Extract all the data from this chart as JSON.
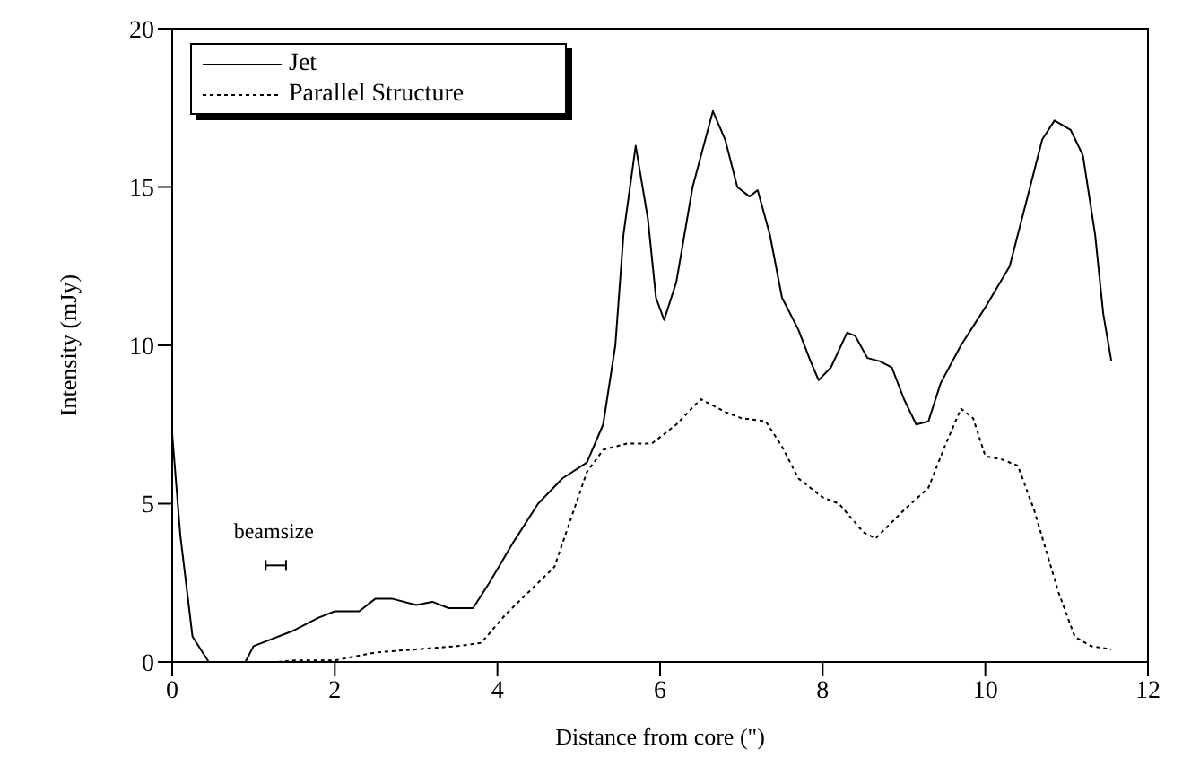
{
  "chart_data": {
    "type": "line",
    "xlabel": "Distance from core (\")",
    "ylabel": "Intensity (mJy)",
    "xlim": [
      0,
      12
    ],
    "xticks": [
      0,
      2,
      4,
      6,
      8,
      10,
      12
    ],
    "ylim": [
      0,
      20
    ],
    "yticks": [
      0,
      5,
      10,
      15,
      20
    ],
    "grid": false,
    "legend": "top left",
    "marker": "none",
    "annotations": [
      "beamsize"
    ],
    "series": [
      {
        "name": "Jet",
        "color": "#000000",
        "line_style": "solid",
        "x": [
          0,
          0.1,
          0.25,
          0.45,
          0.9,
          1.0,
          1.5,
          1.8,
          2.0,
          2.3,
          2.5,
          2.7,
          3.0,
          3.2,
          3.4,
          3.7,
          3.9,
          4.2,
          4.5,
          4.8,
          5.1,
          5.3,
          5.45,
          5.55,
          5.7,
          5.85,
          5.95,
          6.05,
          6.2,
          6.4,
          6.65,
          6.8,
          6.95,
          7.1,
          7.2,
          7.35,
          7.5,
          7.7,
          7.85,
          7.95,
          8.1,
          8.3,
          8.4,
          8.55,
          8.7,
          8.85,
          9.0,
          9.15,
          9.3,
          9.45,
          9.7,
          10.0,
          10.3,
          10.5,
          10.7,
          10.85,
          11.05,
          11.2,
          11.35,
          11.45,
          11.55
        ],
        "values": [
          7.2,
          4,
          0.8,
          0,
          0,
          0.5,
          1.0,
          1.4,
          1.6,
          1.6,
          2.0,
          2.0,
          1.8,
          1.9,
          1.7,
          1.7,
          2.5,
          3.8,
          5.0,
          5.8,
          6.3,
          7.5,
          10,
          13.5,
          16.3,
          14,
          11.5,
          10.8,
          12,
          15,
          17.4,
          16.5,
          15,
          14.7,
          14.9,
          13.5,
          11.5,
          10.5,
          9.5,
          8.9,
          9.3,
          10.4,
          10.3,
          9.6,
          9.5,
          9.3,
          8.3,
          7.5,
          7.6,
          8.8,
          10,
          11.2,
          12.5,
          14.5,
          16.5,
          17.1,
          16.8,
          16,
          13.5,
          11,
          9.5
        ]
      },
      {
        "name": "Parallel Structure",
        "color": "#000000",
        "line_style": "dotted",
        "x": [
          1.3,
          1.5,
          2.0,
          2.5,
          3.0,
          3.5,
          3.8,
          4.1,
          4.5,
          4.7,
          4.9,
          5.1,
          5.3,
          5.6,
          5.9,
          6.2,
          6.5,
          6.8,
          7.0,
          7.3,
          7.5,
          7.7,
          8.0,
          8.2,
          8.5,
          8.65,
          9.0,
          9.3,
          9.5,
          9.7,
          9.85,
          10.0,
          10.2,
          10.4,
          10.6,
          10.9,
          11.1,
          11.3,
          11.55
        ],
        "values": [
          0,
          0.05,
          0.05,
          0.3,
          0.4,
          0.5,
          0.6,
          1.5,
          2.5,
          3.0,
          4.5,
          6.0,
          6.7,
          6.9,
          6.9,
          7.5,
          8.3,
          7.9,
          7.7,
          7.6,
          6.8,
          5.8,
          5.2,
          5.0,
          4.1,
          3.9,
          4.8,
          5.5,
          6.8,
          8.0,
          7.7,
          6.5,
          6.4,
          6.2,
          4.8,
          2.2,
          0.8,
          0.5,
          0.4
        ]
      }
    ]
  }
}
